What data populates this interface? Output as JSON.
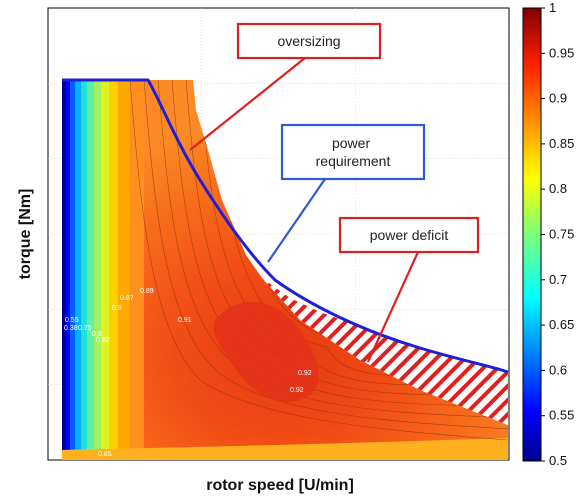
{
  "chart_data": {
    "type": "heatmap",
    "subtype": "filled-contour efficiency map",
    "xlabel": "rotor speed [U/min]",
    "ylabel": "torque [Nm]",
    "x_tick_labels": "none",
    "y_tick_labels": "none",
    "grid": true,
    "colorbar": {
      "colormap": "jet",
      "range": [
        0.5,
        1
      ],
      "ticks": [
        "0.5",
        "0.55",
        "0.6",
        "0.65",
        "0.7",
        "0.75",
        "0.8",
        "0.85",
        "0.9",
        "0.95",
        "1"
      ],
      "placement": "right"
    },
    "peak_efficiency": 0.92,
    "contour_labels": [
      {
        "text": "0.89",
        "region": "upper-middle"
      },
      {
        "text": "0.87",
        "region": "upper-middle"
      },
      {
        "text": "0.9",
        "region": "upper-middle"
      },
      {
        "text": "0.91",
        "region": "center"
      },
      {
        "text": "0.92",
        "region": "lower-center"
      },
      {
        "text": "0.92",
        "region": "lower-center"
      },
      {
        "text": "0.55",
        "region": "left"
      },
      {
        "text": "0.38",
        "region": "left"
      },
      {
        "text": "0.75",
        "region": "left"
      },
      {
        "text": "0.82",
        "region": "left"
      },
      {
        "text": "0.8",
        "region": "left"
      },
      {
        "text": "0.85",
        "region": "bottom-left"
      }
    ],
    "series": [
      {
        "name": "power requirement",
        "color": "#1f1fd6",
        "description": "constant torque region then hyperbolic decline"
      }
    ],
    "annotations": [
      {
        "text": "oversizing",
        "box_color": "#e02020"
      },
      {
        "text": "power\nrequirement",
        "box_color": "#2e5ad8"
      },
      {
        "text": "power deficit",
        "box_color": "#e02020",
        "hatched_region": true
      }
    ]
  },
  "colors": {
    "requirement_line": "#1f1fd6",
    "callout_red": "#e02020",
    "callout_blue": "#2e5ad8"
  }
}
